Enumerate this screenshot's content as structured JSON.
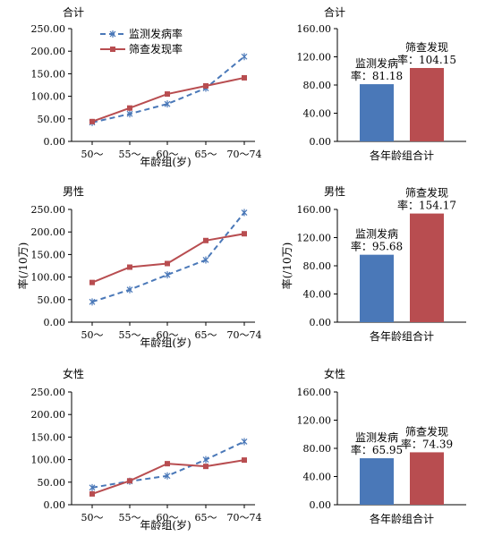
{
  "line_panels": [
    {
      "title": "合计",
      "ylabel": "",
      "xlabel": "年龄组(岁)",
      "categories": [
        "50～",
        "55～",
        "60～",
        "65～",
        "70～74"
      ],
      "yticks": [
        "0.00",
        "50.00",
        "100.00",
        "150.00",
        "200.00",
        "250.00"
      ],
      "series": [
        {
          "name": "监测发病率",
          "color": "#4a78b8",
          "values": [
            42,
            61,
            83,
            118,
            188
          ]
        },
        {
          "name": "筛查发现率",
          "color": "#b84d50",
          "values": [
            44,
            74,
            105,
            123,
            141
          ]
        }
      ]
    },
    {
      "title": "男性",
      "ylabel": "率(/10万)",
      "xlabel": "年龄组(岁)",
      "categories": [
        "50～",
        "55～",
        "60～",
        "65～",
        "70～74"
      ],
      "yticks": [
        "0.00",
        "50.00",
        "100.00",
        "150.00",
        "200.00",
        "250.00"
      ],
      "series": [
        {
          "name": "监测发病率",
          "color": "#4a78b8",
          "values": [
            45,
            72,
            105,
            138,
            243
          ]
        },
        {
          "name": "筛查发现率",
          "color": "#b84d50",
          "values": [
            88,
            122,
            130,
            181,
            196
          ]
        }
      ]
    },
    {
      "title": "女性",
      "ylabel": "",
      "xlabel": "年龄组(岁)",
      "categories": [
        "50～",
        "55～",
        "60～",
        "65～",
        "70～74"
      ],
      "yticks": [
        "0.00",
        "50.00",
        "100.00",
        "150.00",
        "200.00",
        "250.00"
      ],
      "series": [
        {
          "name": "监测发病率",
          "color": "#4a78b8",
          "values": [
            38,
            52,
            64,
            100,
            140
          ]
        },
        {
          "name": "筛查发现率",
          "color": "#b84d50",
          "values": [
            24,
            53,
            91,
            85,
            99
          ]
        }
      ]
    }
  ],
  "legend": [
    "监测发病率",
    "筛查发现率"
  ],
  "bar_panels": [
    {
      "title": "合计",
      "ylabel": "",
      "xlabel": "各年龄组合计",
      "yticks": [
        "0.00",
        "40.00",
        "80.00",
        "120.00",
        "160.00"
      ],
      "bars": [
        {
          "label_line1": "监测发病",
          "label_line2": "率：81.18",
          "value": 81.18,
          "color": "#4a78b8"
        },
        {
          "label_line1": "筛查发现",
          "label_line2": "率：104.15",
          "value": 104.15,
          "color": "#b84d50"
        }
      ]
    },
    {
      "title": "男性",
      "ylabel": "率(/10万)",
      "xlabel": "各年龄组合计",
      "yticks": [
        "0.00",
        "40.00",
        "80.00",
        "120.00",
        "160.00"
      ],
      "bars": [
        {
          "label_line1": "监测发病",
          "label_line2": "率：95.68",
          "value": 95.68,
          "color": "#4a78b8"
        },
        {
          "label_line1": "筛查发现",
          "label_line2": "率：154.17",
          "value": 154.17,
          "color": "#b84d50"
        }
      ]
    },
    {
      "title": "女性",
      "ylabel": "",
      "xlabel": "各年龄组合计",
      "yticks": [
        "0.00",
        "40.00",
        "80.00",
        "120.00",
        "160.00"
      ],
      "bars": [
        {
          "label_line1": "监测发病",
          "label_line2": "率：65.95",
          "value": 65.95,
          "color": "#4a78b8"
        },
        {
          "label_line1": "筛查发现",
          "label_line2": "率：74.39",
          "value": 74.39,
          "color": "#b84d50"
        }
      ]
    }
  ],
  "chart_data": [
    {
      "type": "line",
      "title": "合计",
      "xlabel": "年龄组(岁)",
      "ylabel": "",
      "categories": [
        "50～",
        "55～",
        "60～",
        "65～",
        "70～74"
      ],
      "ylim": [
        0,
        250
      ],
      "series": [
        {
          "name": "监测发病率",
          "values": [
            42,
            61,
            83,
            118,
            188
          ]
        },
        {
          "name": "筛查发现率",
          "values": [
            44,
            74,
            105,
            123,
            141
          ]
        }
      ]
    },
    {
      "type": "bar",
      "title": "合计",
      "xlabel": "各年龄组合计",
      "ylabel": "",
      "categories": [
        "监测发病率",
        "筛查发现率"
      ],
      "values": [
        81.18,
        104.15
      ],
      "ylim": [
        0,
        160
      ]
    },
    {
      "type": "line",
      "title": "男性",
      "xlabel": "年龄组(岁)",
      "ylabel": "率(/10万)",
      "categories": [
        "50～",
        "55～",
        "60～",
        "65～",
        "70～74"
      ],
      "ylim": [
        0,
        250
      ],
      "series": [
        {
          "name": "监测发病率",
          "values": [
            45,
            72,
            105,
            138,
            243
          ]
        },
        {
          "name": "筛查发现率",
          "values": [
            88,
            122,
            130,
            181,
            196
          ]
        }
      ]
    },
    {
      "type": "bar",
      "title": "男性",
      "xlabel": "各年龄组合计",
      "ylabel": "率(/10万)",
      "categories": [
        "监测发病率",
        "筛查发现率"
      ],
      "values": [
        95.68,
        154.17
      ],
      "ylim": [
        0,
        160
      ]
    },
    {
      "type": "line",
      "title": "女性",
      "xlabel": "年龄组(岁)",
      "ylabel": "",
      "categories": [
        "50～",
        "55～",
        "60～",
        "65～",
        "70～74"
      ],
      "ylim": [
        0,
        250
      ],
      "series": [
        {
          "name": "监测发病率",
          "values": [
            38,
            52,
            64,
            100,
            140
          ]
        },
        {
          "name": "筛查发现率",
          "values": [
            24,
            53,
            91,
            85,
            99
          ]
        }
      ]
    },
    {
      "type": "bar",
      "title": "女性",
      "xlabel": "各年龄组合计",
      "ylabel": "",
      "categories": [
        "监测发病率",
        "筛查发现率"
      ],
      "values": [
        65.95,
        74.39
      ],
      "ylim": [
        0,
        160
      ]
    }
  ]
}
